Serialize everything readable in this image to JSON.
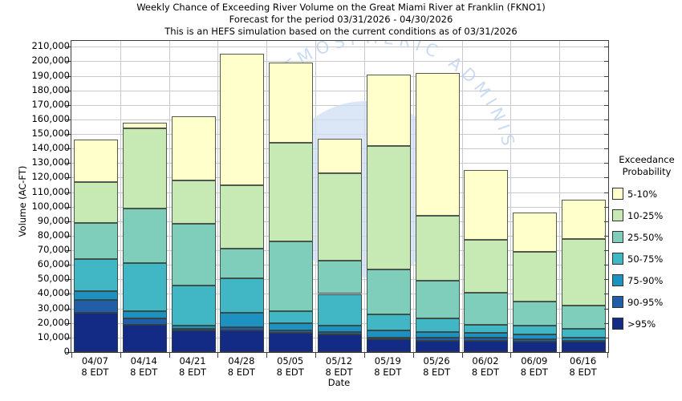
{
  "titles": {
    "line1": "Weekly Chance of Exceeding River Volume on the Great Miami River at Franklin (FKNO1)",
    "line2": "Forecast for the period 03/31/2026 - 04/30/2026",
    "line3": "This is an HEFS simulation based on the current conditions as of 03/31/2026"
  },
  "y_axis": {
    "label": "Volume (AC-FT)",
    "min": 0,
    "max_tick": 210000,
    "tick_step": 10000
  },
  "x_axis": {
    "label": "Date",
    "tick_suffix": "8 EDT"
  },
  "legend": {
    "title_line1": "Exceedance",
    "title_line2": "Probability"
  },
  "watermark": {
    "arc_text": "ATMOSPHERIC ADMINIS",
    "text_color": "#b9cfee",
    "circle_color": "#cfdff5"
  },
  "colors": {
    "grid": "#c9c9d0",
    "spine": "#3f3f3f",
    "bar_edge": "rgba(55,62,55,0.85)"
  },
  "chart_data": {
    "type": "bar",
    "stacked": true,
    "title": "Weekly Chance of Exceeding River Volume on the Great Miami River at Franklin (FKNO1)",
    "xlabel": "Date",
    "ylabel": "Volume (AC-FT)",
    "ylim": [
      0,
      214000
    ],
    "grid": true,
    "legend_position": "right",
    "legend_title": "Exceedance Probability",
    "categories": [
      "04/07",
      "04/14",
      "04/21",
      "04/28",
      "05/05",
      "05/12",
      "05/19",
      "05/26",
      "06/02",
      "06/09",
      "06/16"
    ],
    "category_suffix": "8 EDT",
    "series_note": "series listed bottom-to-top; tops = cumulative stack top in AC-FT",
    "series": [
      {
        "name": ">95%",
        "color": "#132b85",
        "tops": [
          27000,
          19000,
          15000,
          15000,
          13000,
          12000,
          9000,
          8000,
          8000,
          7000,
          7000
        ]
      },
      {
        "name": "90-95%",
        "color": "#225ea8",
        "tops": [
          36000,
          23000,
          16000,
          17000,
          15000,
          14000,
          10000,
          10000,
          10000,
          9000,
          8000
        ]
      },
      {
        "name": "75-90%",
        "color": "#1d91c0",
        "tops": [
          42000,
          28000,
          18000,
          27000,
          20000,
          18000,
          15000,
          14000,
          13000,
          12000,
          10000
        ]
      },
      {
        "name": "50-75%",
        "color": "#41b6c4",
        "tops": [
          64000,
          61000,
          46000,
          51000,
          28000,
          40000,
          26000,
          23000,
          19000,
          18000,
          16000
        ]
      },
      {
        "name": "25-50%",
        "color": "#7fcdbb",
        "tops": [
          89000,
          99000,
          88000,
          71000,
          76000,
          63000,
          57000,
          49000,
          41000,
          35000,
          32000
        ]
      },
      {
        "name": "10-25%",
        "color": "#c7e9b4",
        "tops": [
          117000,
          154000,
          118000,
          115000,
          144000,
          123000,
          142000,
          94000,
          77000,
          69000,
          78000
        ]
      },
      {
        "name": "5-10%",
        "color": "#ffffcc",
        "tops": [
          146000,
          158000,
          162000,
          205000,
          199000,
          147000,
          191000,
          192000,
          125000,
          96000,
          105000
        ]
      }
    ]
  }
}
